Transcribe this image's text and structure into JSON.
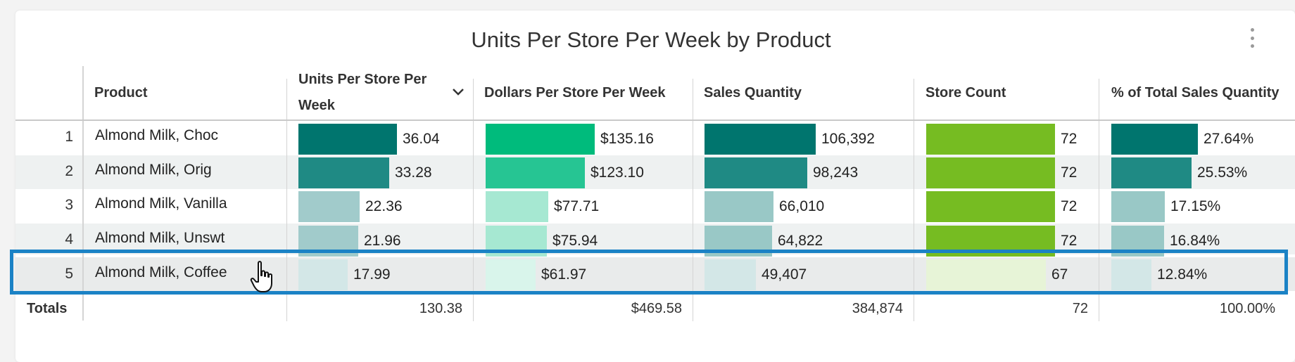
{
  "title": "Units Per Store Per Week by Product",
  "menu_icon": "more-vertical-icon",
  "columns": [
    {
      "label": "Product"
    },
    {
      "label": "Units Per Store Per Week",
      "sort": "descending"
    },
    {
      "label": "Dollars Per Store Per Week"
    },
    {
      "label": "Sales Quantity"
    },
    {
      "label": "Store Count"
    },
    {
      "label": "% of Total Sales Quantity"
    }
  ],
  "rows": [
    {
      "num": "1",
      "product": "Almond Milk, Choc",
      "units": "36.04",
      "dollars": "$135.16",
      "qty": "106,392",
      "stores": "72",
      "pct": "27.64%",
      "units_v": 36.04,
      "dollars_v": 135.16,
      "qty_v": 106392,
      "stores_v": 72,
      "pct_v": 27.64
    },
    {
      "num": "2",
      "product": "Almond Milk, Orig",
      "units": "33.28",
      "dollars": "$123.10",
      "qty": "98,243",
      "stores": "72",
      "pct": "25.53%",
      "units_v": 33.28,
      "dollars_v": 123.1,
      "qty_v": 98243,
      "stores_v": 72,
      "pct_v": 25.53
    },
    {
      "num": "3",
      "product": "Almond Milk, Vanilla",
      "units": "22.36",
      "dollars": "$77.71",
      "qty": "66,010",
      "stores": "72",
      "pct": "17.15%",
      "units_v": 22.36,
      "dollars_v": 77.71,
      "qty_v": 66010,
      "stores_v": 72,
      "pct_v": 17.15
    },
    {
      "num": "4",
      "product": "Almond Milk, Unswt",
      "units": "21.96",
      "dollars": "$75.94",
      "qty": "64,822",
      "stores": "72",
      "pct": "16.84%",
      "units_v": 21.96,
      "dollars_v": 75.94,
      "qty_v": 64822,
      "stores_v": 72,
      "pct_v": 16.84
    },
    {
      "num": "5",
      "product": "Almond Milk, Coffee",
      "units": "17.99",
      "dollars": "$61.97",
      "qty": "49,407",
      "stores": "67",
      "pct": "12.84%",
      "units_v": 17.99,
      "dollars_v": 61.97,
      "qty_v": 49407,
      "stores_v": 67,
      "pct_v": 12.84
    }
  ],
  "totals": {
    "label": "Totals",
    "units": "130.38",
    "dollars": "$469.58",
    "qty": "384,874",
    "stores": "72",
    "pct": "100.00%"
  },
  "colors": {
    "units": [
      "#00756e",
      "#1f8a84",
      "#a1cbcb",
      "#a1cbcb",
      "#d3e7e7"
    ],
    "dollars": [
      "#00bb7c",
      "#26c593",
      "#a6e8d2",
      "#a6e8d2",
      "#d9f5eb"
    ],
    "qty": [
      "#00756e",
      "#1f8a84",
      "#99c8c6",
      "#99c8c6",
      "#d3e7e7"
    ],
    "stores": [
      "#76bc22",
      "#76bc22",
      "#76bc22",
      "#76bc22",
      "#e7f4d7"
    ],
    "pct": [
      "#00756e",
      "#1f8a84",
      "#99c8c6",
      "#99c8c6",
      "#d3e7e7"
    ],
    "highlight": "#1b82c5"
  },
  "cursor_icon": "hand-pointer-icon"
}
